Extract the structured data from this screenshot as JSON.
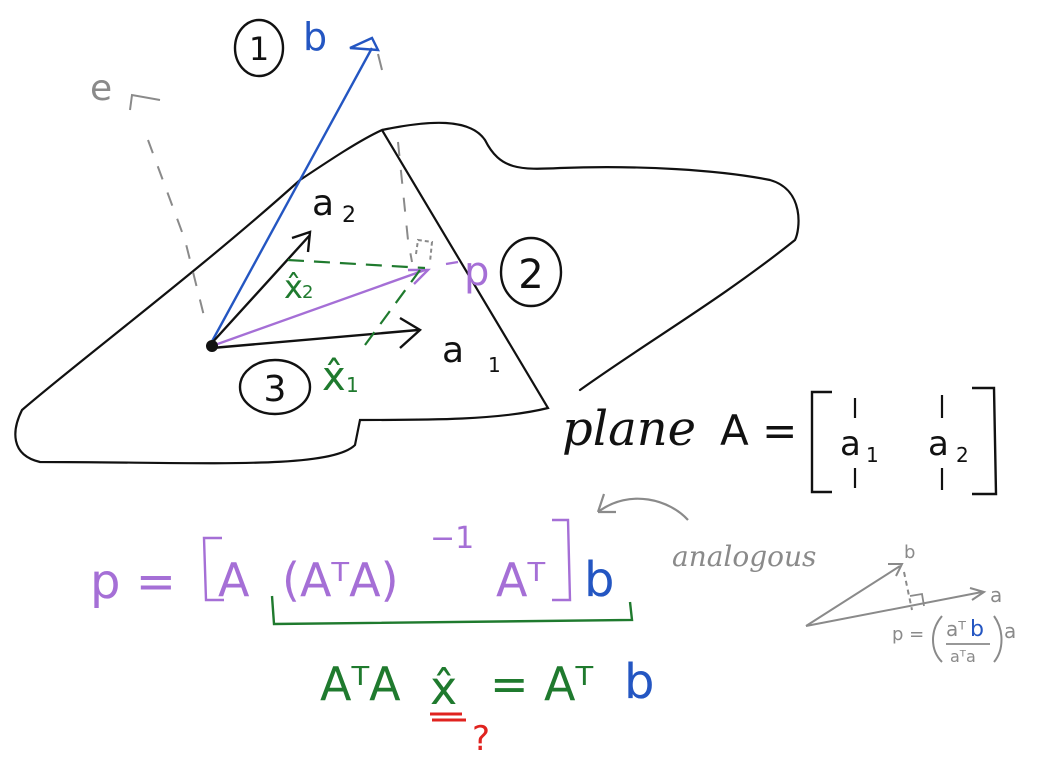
{
  "labels": {
    "step1": "1",
    "step2": "2",
    "step3": "3",
    "b": "b",
    "e": "e",
    "p": "p",
    "a1": "a",
    "a1_sub": "1",
    "a2": "a",
    "a2_sub": "2",
    "xhat1": "x̂",
    "xhat1_sub": "1",
    "xhat2": "x̂",
    "xhat2_sub": "2"
  },
  "plane_equation": {
    "word": "plane",
    "lhs": "A =",
    "col1": "a",
    "col1_sub": "1",
    "col2": "a",
    "col2_sub": "2"
  },
  "projection_formula": {
    "p_eq": "p =",
    "A": "A",
    "ATA": "(AᵀA)",
    "inverse": "−1",
    "AT": "Aᵀ",
    "b": "b"
  },
  "normal_equation": {
    "lhs": "AᵀA",
    "xhat": "x̂",
    "eq": "=",
    "AT": "Aᵀ",
    "b": "b",
    "question": "?"
  },
  "analogous_note": {
    "word": "analogous",
    "b": "b",
    "a": "a",
    "p_eq": "p =",
    "numerator_aT": "aᵀ",
    "numerator_b": "b",
    "denominator": "aᵀa",
    "trailing_a": "a"
  },
  "colors": {
    "ink": "#111111",
    "blue": "#2456c2",
    "purple": "#a56fd6",
    "green": "#1f7a2e",
    "gray": "#8a8a8a",
    "red": "#e0231f"
  }
}
